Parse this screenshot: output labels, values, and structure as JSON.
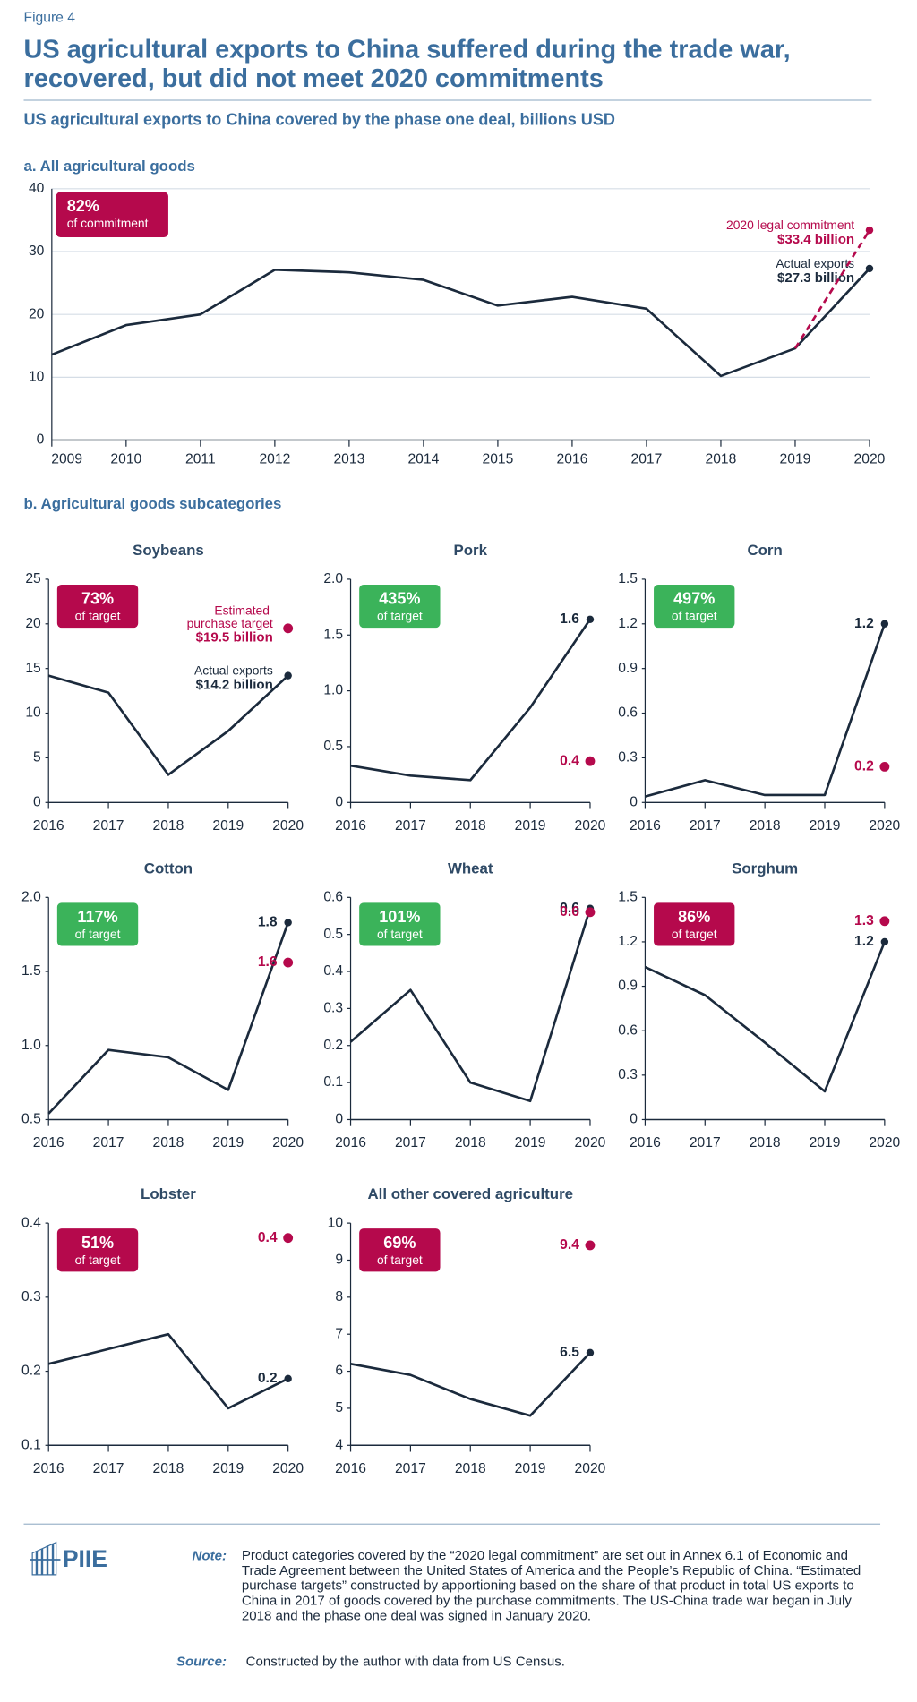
{
  "figure_label": "Figure 4",
  "title": [
    "US agricultural exports to China suffered during the trade war,",
    "recovered, but did not meet 2020 commitments"
  ],
  "subtitle": "US agricultural exports to China covered by the phase one deal, billions USD",
  "subcategories_heading": "b. Agricultural goods subcategories",
  "chart_data": [
    {
      "type": "line",
      "title": "a. All agricultural goods",
      "x": [
        2009,
        2010,
        2011,
        2012,
        2013,
        2014,
        2015,
        2016,
        2017,
        2018,
        2019,
        2020
      ],
      "xlim": [
        2009,
        2020
      ],
      "ylim": [
        0,
        40
      ],
      "yticks": [
        0,
        10,
        20,
        30,
        40
      ],
      "grid": true,
      "badge": {
        "value": 82,
        "label": "82%",
        "text": "of commitment",
        "color": "#b5094c"
      },
      "series": [
        {
          "name": "Actual exports",
          "color": "#1b2a3c",
          "values": [
            13.6,
            18.3,
            20.0,
            27.1,
            26.7,
            25.5,
            21.4,
            22.8,
            20.9,
            10.2,
            14.6,
            27.3
          ],
          "value_labels": [
            null,
            null,
            null,
            null,
            null,
            null,
            null,
            null,
            null,
            null,
            null,
            "$27.3 billion"
          ]
        },
        {
          "name": "2020 legal commitment",
          "color": "#b5094c",
          "dashed": true,
          "values": [
            null,
            null,
            null,
            null,
            null,
            null,
            null,
            null,
            null,
            null,
            14.6,
            33.4
          ],
          "value_labels": [
            null,
            null,
            null,
            null,
            null,
            null,
            null,
            null,
            null,
            null,
            null,
            "$33.4 billion"
          ]
        }
      ]
    },
    {
      "type": "line",
      "title": "Soybeans",
      "x": [
        2016,
        2017,
        2018,
        2019,
        2020
      ],
      "xlim": [
        2016,
        2020
      ],
      "ylim": [
        0,
        25
      ],
      "yticks": [
        0,
        5,
        10,
        15,
        20,
        25
      ],
      "grid": false,
      "badge": {
        "value": 73,
        "label": "73%",
        "text": "of target",
        "color": "#b5094c"
      },
      "series": [
        {
          "name": "Actual exports",
          "color": "#1b2a3c",
          "values": [
            14.2,
            12.3,
            3.1,
            8.0,
            14.2
          ],
          "value_labels": [
            null,
            null,
            null,
            null,
            "$14.2 billion"
          ]
        },
        {
          "name": "Estimated purchase target",
          "color": "#b5094c",
          "values": [
            null,
            null,
            null,
            null,
            19.5
          ],
          "value_labels": [
            null,
            null,
            null,
            null,
            "$19.5 billion"
          ]
        }
      ]
    },
    {
      "type": "line",
      "title": "Pork",
      "x": [
        2016,
        2017,
        2018,
        2019,
        2020
      ],
      "xlim": [
        2016,
        2020
      ],
      "ylim": [
        0,
        2.0
      ],
      "yticks": [
        0,
        0.5,
        {
          "value": 1.0,
          "label": "1.0"
        },
        1.5,
        {
          "value": 2.0,
          "label": "2.0"
        }
      ],
      "grid": false,
      "badge": {
        "value": 435,
        "label": "435%",
        "text": "of target",
        "color": "#3bb35a"
      },
      "series": [
        {
          "color": "#1b2a3c",
          "values": [
            0.33,
            0.24,
            0.2,
            0.85,
            1.64
          ],
          "value_labels": [
            null,
            null,
            null,
            null,
            "1.6"
          ]
        },
        {
          "color": "#b5094c",
          "values": [
            null,
            null,
            null,
            null,
            0.37
          ],
          "value_labels": [
            null,
            null,
            null,
            null,
            "0.4"
          ]
        }
      ]
    },
    {
      "type": "line",
      "title": "Corn",
      "x": [
        2016,
        2017,
        2018,
        2019,
        2020
      ],
      "xlim": [
        2016,
        2020
      ],
      "ylim": [
        0,
        1.5
      ],
      "yticks": [
        0,
        0.3,
        0.6,
        0.9,
        1.2,
        1.5
      ],
      "grid": false,
      "badge": {
        "value": 497,
        "label": "497%",
        "text": "of target",
        "color": "#3bb35a"
      },
      "series": [
        {
          "color": "#1b2a3c",
          "values": [
            0.04,
            0.15,
            0.05,
            0.05,
            1.2
          ],
          "value_labels": [
            null,
            null,
            null,
            null,
            "1.2"
          ]
        },
        {
          "color": "#b5094c",
          "values": [
            null,
            null,
            null,
            null,
            0.24
          ],
          "value_labels": [
            null,
            null,
            null,
            null,
            "0.2"
          ]
        }
      ]
    },
    {
      "type": "line",
      "title": "Cotton",
      "x": [
        2016,
        2017,
        2018,
        2019,
        2020
      ],
      "xlim": [
        2016,
        2020
      ],
      "ylim": [
        0.5,
        2.0
      ],
      "yticks": [
        0.5,
        {
          "value": 1.0,
          "label": "1.0"
        },
        1.5,
        {
          "value": 2.0,
          "label": "2.0"
        }
      ],
      "grid": false,
      "badge": {
        "value": 117,
        "label": "117%",
        "text": "of target",
        "color": "#3bb35a"
      },
      "series": [
        {
          "color": "#1b2a3c",
          "values": [
            0.54,
            0.97,
            0.92,
            0.7,
            1.83
          ],
          "value_labels": [
            null,
            null,
            null,
            null,
            "1.8"
          ]
        },
        {
          "color": "#b5094c",
          "values": [
            null,
            null,
            null,
            null,
            1.56
          ],
          "value_labels": [
            null,
            null,
            null,
            null,
            "1.6"
          ]
        }
      ]
    },
    {
      "type": "line",
      "title": "Wheat",
      "x": [
        2016,
        2017,
        2018,
        2019,
        2020
      ],
      "xlim": [
        2016,
        2020
      ],
      "ylim": [
        0,
        0.6
      ],
      "yticks": [
        0,
        0.1,
        0.2,
        0.3,
        0.4,
        0.5,
        0.6
      ],
      "grid": false,
      "badge": {
        "value": 101,
        "label": "101%",
        "text": "of target",
        "color": "#3bb35a"
      },
      "series": [
        {
          "color": "#1b2a3c",
          "values": [
            0.21,
            0.35,
            0.1,
            0.05,
            0.57
          ],
          "value_labels": [
            null,
            null,
            null,
            null,
            "0.6"
          ]
        },
        {
          "color": "#b5094c",
          "values": [
            null,
            null,
            null,
            null,
            0.56
          ],
          "value_labels": [
            null,
            null,
            null,
            null,
            "0.6"
          ]
        }
      ]
    },
    {
      "type": "line",
      "title": "Sorghum",
      "x": [
        2016,
        2017,
        2018,
        2019,
        2020
      ],
      "xlim": [
        2016,
        2020
      ],
      "ylim": [
        0,
        1.5
      ],
      "yticks": [
        0,
        0.3,
        0.6,
        0.9,
        1.2,
        1.5
      ],
      "grid": false,
      "badge": {
        "value": 86,
        "label": "86%",
        "text": "of target",
        "color": "#b5094c"
      },
      "series": [
        {
          "color": "#1b2a3c",
          "values": [
            1.03,
            0.84,
            0.52,
            0.19,
            1.2
          ],
          "value_labels": [
            null,
            null,
            null,
            null,
            "1.2"
          ]
        },
        {
          "color": "#b5094c",
          "values": [
            null,
            null,
            null,
            null,
            1.34
          ],
          "value_labels": [
            null,
            null,
            null,
            null,
            "1.3"
          ]
        }
      ]
    },
    {
      "type": "line",
      "title": "Lobster",
      "x": [
        2016,
        2017,
        2018,
        2019,
        2020
      ],
      "xlim": [
        2016,
        2020
      ],
      "ylim": [
        0.1,
        0.4
      ],
      "yticks": [
        0.1,
        0.2,
        0.3,
        0.4
      ],
      "grid": false,
      "badge": {
        "value": 51,
        "label": "51%",
        "text": "of target",
        "color": "#b5094c"
      },
      "series": [
        {
          "color": "#1b2a3c",
          "values": [
            0.21,
            0.23,
            0.25,
            0.15,
            0.19
          ],
          "value_labels": [
            null,
            null,
            null,
            null,
            "0.2"
          ]
        },
        {
          "color": "#b5094c",
          "values": [
            null,
            null,
            null,
            null,
            0.38
          ],
          "value_labels": [
            null,
            null,
            null,
            null,
            "0.4"
          ]
        }
      ]
    },
    {
      "type": "line",
      "title": "All other covered agriculture",
      "x": [
        2016,
        2017,
        2018,
        2019,
        2020
      ],
      "xlim": [
        2016,
        2020
      ],
      "ylim": [
        4,
        10
      ],
      "yticks": [
        4,
        5,
        6,
        7,
        8,
        9,
        10
      ],
      "grid": false,
      "badge": {
        "value": 69,
        "label": "69%",
        "text": "of target",
        "color": "#b5094c"
      },
      "series": [
        {
          "color": "#1b2a3c",
          "values": [
            6.2,
            5.9,
            5.25,
            4.8,
            6.5
          ],
          "value_labels": [
            null,
            null,
            null,
            null,
            "6.5"
          ]
        },
        {
          "color": "#b5094c",
          "values": [
            null,
            null,
            null,
            null,
            9.4
          ],
          "value_labels": [
            null,
            null,
            null,
            null,
            "9.4"
          ]
        }
      ]
    }
  ],
  "logo": "PIIE",
  "note": {
    "label": "Note:",
    "text": "Product categories covered by the “2020 legal commitment” are set out in Annex 6.1 of Economic and Trade Agreement between the United States of America and the People’s Republic of China. “Estimated purchase targets” constructed by apportioning based on the share of that product in total US exports to China in 2017 of goods covered by the purchase commitments. The US-China trade war began in July 2018 and the phase one deal was signed in January 2020."
  },
  "source": {
    "label": "Source:",
    "text": "Constructed by the author with data from US Census."
  }
}
